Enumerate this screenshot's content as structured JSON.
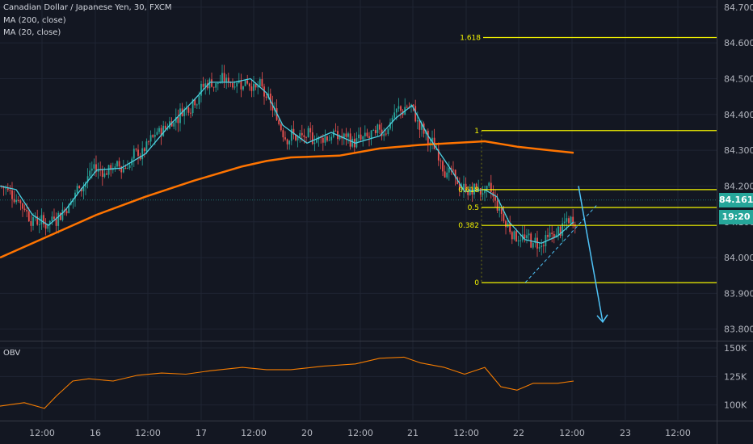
{
  "legend": {
    "title": "Canadian Dollar / Japanese Yen, 30, FXCM",
    "ma200": "MA (200, close)",
    "ma20": "MA (20, close)",
    "obv": "OBV"
  },
  "colors": {
    "background": "#131722",
    "grid": "#1f2433",
    "bull": "#26a69a",
    "bear": "#ef5350",
    "ma200": "#ff7400",
    "ma20": "#4dd0e1",
    "fib": "#f5f500",
    "obv": "#f57c00",
    "arrow": "#4fc3f7",
    "price_tag": "#26a69a"
  },
  "price_tags": {
    "last_price": "84.161",
    "countdown": "19:20"
  },
  "chart_data": {
    "type": "candlestick",
    "price_axis": {
      "ticks": [
        "84.700",
        "84.600",
        "84.500",
        "84.400",
        "84.300",
        "84.200",
        "84.100",
        "84.000",
        "83.900",
        "83.800"
      ],
      "values": [
        84.7,
        84.6,
        84.5,
        84.4,
        84.3,
        84.2,
        84.1,
        84.0,
        83.9,
        83.8
      ],
      "range": [
        83.77,
        84.72
      ]
    },
    "time_axis": {
      "labels": [
        "12:00",
        "16",
        "12:00",
        "17",
        "12:00",
        "20",
        "12:00",
        "21",
        "12:00",
        "22",
        "12:00",
        "23",
        "12:00"
      ]
    },
    "fibonacci": [
      {
        "level": "1.618",
        "price": 84.615
      },
      {
        "level": "1",
        "price": 84.355
      },
      {
        "level": "0.618",
        "price": 84.19
      },
      {
        "level": "0.5",
        "price": 84.14
      },
      {
        "level": "0.382",
        "price": 84.09
      },
      {
        "level": "0",
        "price": 83.93
      }
    ],
    "series": [
      {
        "name": "MA (200, close)",
        "points": [
          [
            0,
            84.0
          ],
          [
            60,
            84.06
          ],
          [
            120,
            84.12
          ],
          [
            180,
            84.17
          ],
          [
            240,
            84.215
          ],
          [
            300,
            84.255
          ],
          [
            330,
            84.27
          ],
          [
            360,
            84.28
          ],
          [
            420,
            84.285
          ],
          [
            470,
            84.305
          ],
          [
            520,
            84.315
          ],
          [
            560,
            84.32
          ],
          [
            600,
            84.325
          ],
          [
            640,
            84.31
          ],
          [
            680,
            84.3
          ],
          [
            710,
            84.293
          ]
        ]
      },
      {
        "name": "MA (20, close)",
        "points": [
          [
            0,
            84.2
          ],
          [
            20,
            84.19
          ],
          [
            40,
            84.12
          ],
          [
            60,
            84.09
          ],
          [
            80,
            84.13
          ],
          [
            100,
            84.19
          ],
          [
            120,
            84.245
          ],
          [
            150,
            84.25
          ],
          [
            180,
            84.29
          ],
          [
            210,
            84.37
          ],
          [
            240,
            84.44
          ],
          [
            260,
            84.49
          ],
          [
            290,
            84.49
          ],
          [
            310,
            84.5
          ],
          [
            330,
            84.46
          ],
          [
            350,
            84.37
          ],
          [
            380,
            84.32
          ],
          [
            410,
            84.35
          ],
          [
            440,
            84.32
          ],
          [
            470,
            84.34
          ],
          [
            490,
            84.39
          ],
          [
            510,
            84.425
          ],
          [
            530,
            84.34
          ],
          [
            560,
            84.24
          ],
          [
            575,
            84.185
          ],
          [
            600,
            84.19
          ],
          [
            615,
            84.17
          ],
          [
            630,
            84.1
          ],
          [
            650,
            84.05
          ],
          [
            670,
            84.04
          ],
          [
            690,
            84.06
          ],
          [
            710,
            84.1
          ]
        ]
      },
      {
        "name": "OBV",
        "axis": {
          "ticks": [
            "150K",
            "125K",
            "100K"
          ],
          "values": [
            150,
            125,
            100
          ],
          "range": [
            87,
            155
          ]
        },
        "points": [
          [
            0,
            99
          ],
          [
            30,
            102
          ],
          [
            55,
            97
          ],
          [
            70,
            108
          ],
          [
            90,
            121
          ],
          [
            110,
            123
          ],
          [
            140,
            121
          ],
          [
            170,
            126
          ],
          [
            200,
            128
          ],
          [
            230,
            127
          ],
          [
            260,
            130
          ],
          [
            300,
            133
          ],
          [
            330,
            131
          ],
          [
            360,
            131
          ],
          [
            400,
            134
          ],
          [
            440,
            136
          ],
          [
            470,
            141
          ],
          [
            500,
            142
          ],
          [
            520,
            137
          ],
          [
            550,
            133
          ],
          [
            575,
            127
          ],
          [
            600,
            133
          ],
          [
            620,
            116
          ],
          [
            640,
            113
          ],
          [
            660,
            119
          ],
          [
            690,
            119
          ],
          [
            710,
            121
          ]
        ]
      }
    ]
  }
}
